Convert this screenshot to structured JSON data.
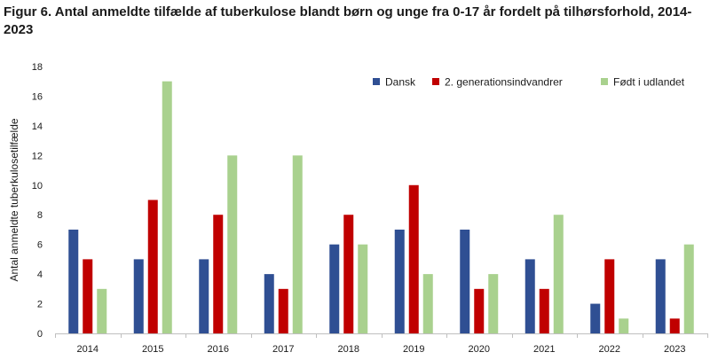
{
  "figure": {
    "title": "Figur 6. Antal anmeldte tilfælde af tuberkulose blandt børn og unge fra 0-17 år fordelt på tilhørsforhold, 2014-2023"
  },
  "chart_data": {
    "type": "bar",
    "title": "",
    "xlabel": "",
    "ylabel": "Antal anmeldte tuberkulosetilfælde",
    "ylim": [
      0,
      18
    ],
    "yticks": [
      0,
      2,
      4,
      6,
      8,
      10,
      12,
      14,
      16,
      18
    ],
    "grid": false,
    "legend_position": "top-right",
    "categories": [
      "2014",
      "2015",
      "2016",
      "2017",
      "2018",
      "2019",
      "2020",
      "2021",
      "2022",
      "2023"
    ],
    "series": [
      {
        "name": "Dansk",
        "color": "#2f4f93",
        "values": [
          7,
          5,
          5,
          4,
          6,
          7,
          7,
          5,
          2,
          5
        ]
      },
      {
        "name": "2. generationsindvandrer",
        "color": "#c00000",
        "values": [
          5,
          9,
          8,
          3,
          8,
          10,
          3,
          3,
          5,
          1
        ]
      },
      {
        "name": "Født i udlandet",
        "color": "#a9d18e",
        "values": [
          3,
          17,
          12,
          12,
          6,
          4,
          4,
          8,
          1,
          6
        ]
      }
    ]
  }
}
